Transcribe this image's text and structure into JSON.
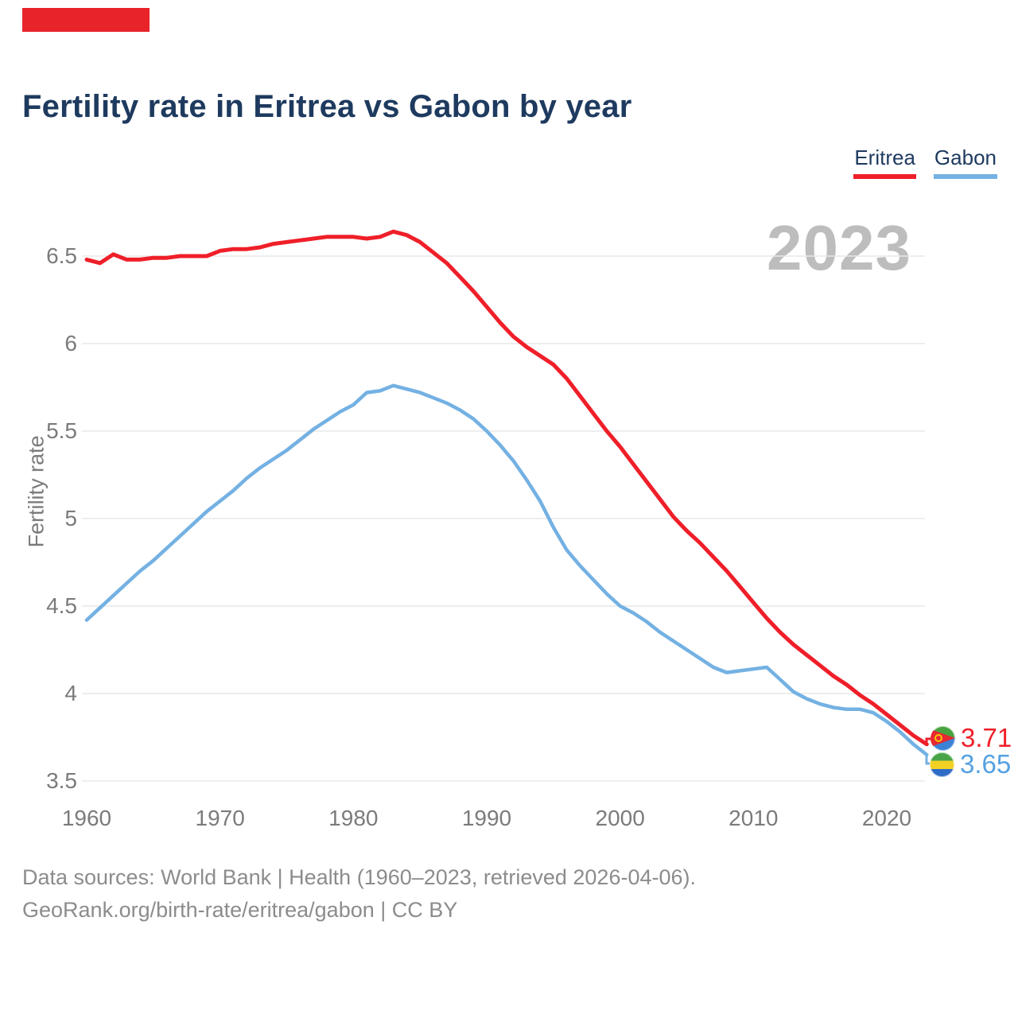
{
  "brand": {
    "bar_color": "#e8232a"
  },
  "title": "Fertility rate in Eritrea vs Gabon by year",
  "legend": [
    {
      "label": "Eritrea",
      "color": "#ef1f29"
    },
    {
      "label": "Gabon",
      "color": "#74b1e3"
    }
  ],
  "watermark": "2023",
  "y_axis_title": "Fertility rate",
  "end_labels": [
    {
      "series": "Eritrea",
      "value": "3.71",
      "flag": "eritrea-flag"
    },
    {
      "series": "Gabon",
      "value": "3.65",
      "flag": "gabon-flag"
    }
  ],
  "footer": {
    "line1": "Data sources: World Bank | Health (1960–2023, retrieved 2026-04-06).",
    "line2": "GeoRank.org/birth-rate/eritrea/gabon | CC BY"
  },
  "chart_data": {
    "type": "line",
    "title": "Fertility rate in Eritrea vs Gabon by year",
    "xlabel": "",
    "ylabel": "Fertility rate",
    "x": [
      1960,
      1961,
      1962,
      1963,
      1964,
      1965,
      1966,
      1967,
      1968,
      1969,
      1970,
      1971,
      1972,
      1973,
      1974,
      1975,
      1976,
      1977,
      1978,
      1979,
      1980,
      1981,
      1982,
      1983,
      1984,
      1985,
      1986,
      1987,
      1988,
      1989,
      1990,
      1991,
      1992,
      1993,
      1994,
      1995,
      1996,
      1997,
      1998,
      1999,
      2000,
      2001,
      2002,
      2003,
      2004,
      2005,
      2006,
      2007,
      2008,
      2009,
      2010,
      2011,
      2012,
      2013,
      2014,
      2015,
      2016,
      2017,
      2018,
      2019,
      2020,
      2021,
      2022,
      2023
    ],
    "series": [
      {
        "name": "Eritrea",
        "color": "#ef1f29",
        "values": [
          6.48,
          6.46,
          6.51,
          6.48,
          6.48,
          6.49,
          6.49,
          6.5,
          6.5,
          6.5,
          6.53,
          6.54,
          6.54,
          6.55,
          6.57,
          6.58,
          6.59,
          6.6,
          6.61,
          6.61,
          6.61,
          6.6,
          6.61,
          6.64,
          6.62,
          6.58,
          6.52,
          6.46,
          6.38,
          6.3,
          6.21,
          6.12,
          6.04,
          5.98,
          5.93,
          5.88,
          5.8,
          5.7,
          5.6,
          5.5,
          5.41,
          5.31,
          5.21,
          5.11,
          5.01,
          4.93,
          4.86,
          4.78,
          4.7,
          4.61,
          4.52,
          4.43,
          4.35,
          4.28,
          4.22,
          4.16,
          4.1,
          4.05,
          3.99,
          3.94,
          3.88,
          3.82,
          3.76,
          3.71
        ]
      },
      {
        "name": "Gabon",
        "color": "#74b1e3",
        "values": [
          4.42,
          4.49,
          4.56,
          4.63,
          4.7,
          4.76,
          4.83,
          4.9,
          4.97,
          5.04,
          5.1,
          5.16,
          5.23,
          5.29,
          5.34,
          5.39,
          5.45,
          5.51,
          5.56,
          5.61,
          5.65,
          5.72,
          5.73,
          5.76,
          5.74,
          5.72,
          5.69,
          5.66,
          5.62,
          5.57,
          5.5,
          5.42,
          5.33,
          5.22,
          5.1,
          4.95,
          4.82,
          4.73,
          4.65,
          4.57,
          4.5,
          4.46,
          4.41,
          4.35,
          4.3,
          4.25,
          4.2,
          4.15,
          4.12,
          4.13,
          4.14,
          4.15,
          4.08,
          4.01,
          3.97,
          3.94,
          3.92,
          3.91,
          3.91,
          3.89,
          3.84,
          3.78,
          3.71,
          3.65
        ]
      }
    ],
    "xticks": [
      1960,
      1970,
      1980,
      1990,
      2000,
      2010,
      2020
    ],
    "yticks": [
      3.5,
      4,
      4.5,
      5,
      5.5,
      6,
      6.5
    ],
    "ylim": [
      3.35,
      6.85
    ],
    "xlim": [
      1960,
      2023
    ],
    "grid": "horizontal",
    "legend_position": "top-right",
    "end_point_labels": {
      "Eritrea": 3.71,
      "Gabon": 3.65
    }
  }
}
